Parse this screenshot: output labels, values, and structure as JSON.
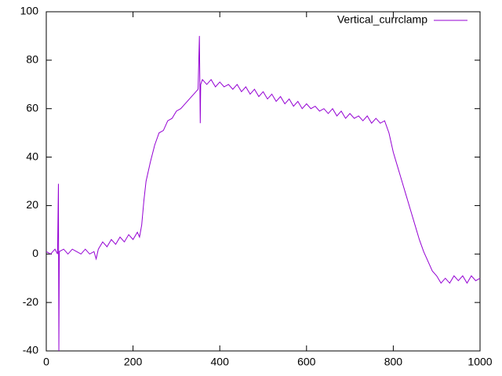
{
  "chart_data": {
    "type": "line",
    "x": [
      0,
      10,
      20,
      26,
      28,
      29,
      30,
      40,
      50,
      60,
      70,
      80,
      90,
      100,
      110,
      115,
      120,
      130,
      140,
      150,
      160,
      170,
      180,
      190,
      200,
      210,
      215,
      220,
      225,
      230,
      240,
      250,
      260,
      270,
      280,
      290,
      300,
      310,
      320,
      330,
      340,
      350,
      353,
      355,
      356,
      360,
      370,
      380,
      390,
      400,
      410,
      420,
      430,
      440,
      450,
      460,
      470,
      480,
      490,
      500,
      510,
      520,
      530,
      540,
      550,
      560,
      570,
      580,
      590,
      600,
      610,
      620,
      630,
      640,
      650,
      660,
      670,
      680,
      690,
      700,
      710,
      720,
      730,
      740,
      750,
      760,
      770,
      780,
      790,
      800,
      810,
      820,
      830,
      840,
      850,
      860,
      870,
      880,
      890,
      900,
      910,
      920,
      930,
      940,
      950,
      960,
      970,
      980,
      990,
      1000
    ],
    "series": [
      {
        "name": "Vertical_currclamp",
        "color": "#9400d3",
        "values": [
          1,
          0,
          2,
          0,
          29,
          -40,
          1,
          2,
          0,
          2,
          1,
          0,
          2,
          0,
          1,
          -2,
          2,
          5,
          3,
          6,
          4,
          7,
          5,
          8,
          6,
          9,
          7,
          12,
          22,
          30,
          38,
          45,
          50,
          51,
          55,
          56,
          59,
          60,
          62,
          64,
          66,
          68,
          90,
          54,
          70,
          72,
          70,
          72,
          69,
          71,
          69,
          70,
          68,
          70,
          67,
          69,
          66,
          68,
          65,
          67,
          64,
          66,
          63,
          65,
          62,
          64,
          61,
          63,
          60,
          62,
          60,
          61,
          59,
          60,
          58,
          60,
          57,
          59,
          56,
          58,
          56,
          57,
          55,
          57,
          54,
          56,
          54,
          55,
          50,
          42,
          36,
          30,
          24,
          18,
          12,
          6,
          1,
          -3,
          -7,
          -9,
          -12,
          -10,
          -12,
          -9,
          -11,
          -9,
          -12,
          -9,
          -11,
          -10
        ]
      }
    ],
    "xlim": [
      0,
      1000
    ],
    "xticks": [
      0,
      200,
      400,
      600,
      800,
      1000
    ],
    "ylim": [
      -40,
      100
    ],
    "yticks": [
      -40,
      -20,
      0,
      20,
      40,
      60,
      80,
      100
    ],
    "legend": "top-right"
  }
}
